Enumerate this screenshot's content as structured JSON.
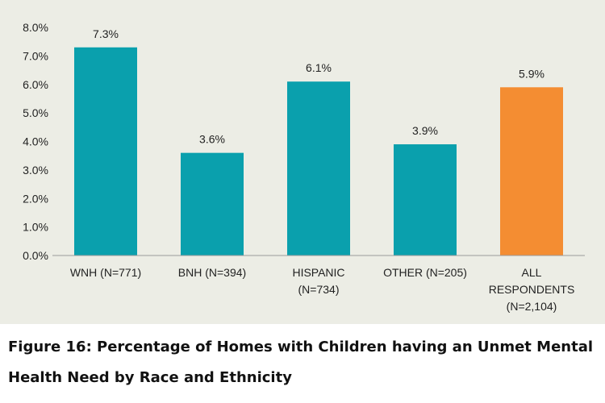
{
  "chart_data": {
    "type": "bar",
    "categories": [
      [
        "WNH (N=771)"
      ],
      [
        "BNH (N=394)"
      ],
      [
        "HISPANIC",
        "(N=734)"
      ],
      [
        "OTHER (N=205)"
      ],
      [
        "ALL",
        "RESPONDENTS",
        "(N=2,104)"
      ]
    ],
    "values": [
      7.3,
      3.6,
      6.1,
      3.9,
      5.9
    ],
    "data_labels": [
      "7.3%",
      "3.6%",
      "6.1%",
      "3.9%",
      "5.9%"
    ],
    "bar_colors": [
      "#0aa0ad",
      "#0aa0ad",
      "#0aa0ad",
      "#0aa0ad",
      "#f48d32"
    ],
    "ylim": [
      0,
      8
    ],
    "yticks": [
      0,
      1,
      2,
      3,
      4,
      5,
      6,
      7,
      8
    ],
    "ytick_labels": [
      "0.0%",
      "1.0%",
      "2.0%",
      "3.0%",
      "4.0%",
      "5.0%",
      "6.0%",
      "7.0%",
      "8.0%"
    ],
    "grid": false,
    "xlabel": "",
    "ylabel": ""
  },
  "caption": "Figure 16: Percentage of Homes with Children having an Unmet Mental Health Need by Race and Ethnicity",
  "colors": {
    "panel_background": "#ecede5",
    "teal": "#0aa0ad",
    "orange": "#f48d32",
    "axis": "#9a9a9a"
  }
}
